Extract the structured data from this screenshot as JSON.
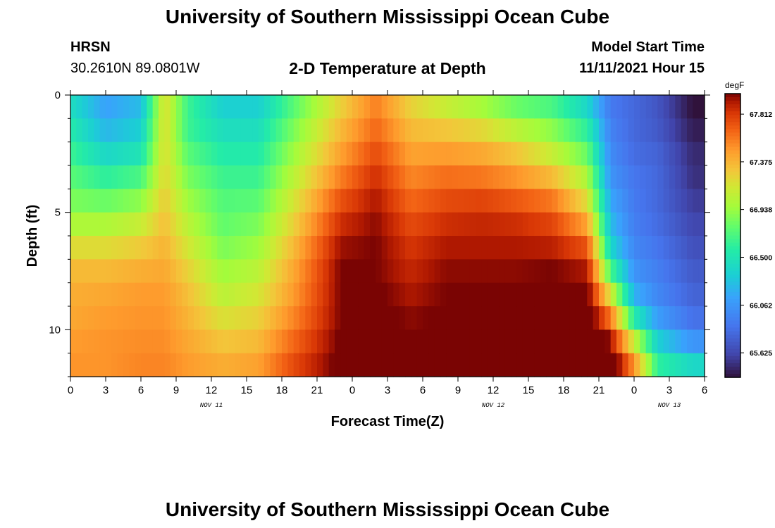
{
  "header": {
    "title": "University of Southern Mississippi Ocean Cube",
    "station_name": "HRSN",
    "coordinates": "30.2610N  89.0801W",
    "plot_title": "2-D Temperature at Depth",
    "model_start_label": "Model Start Time",
    "model_start_value": "11/11/2021 Hour 15"
  },
  "footer": {
    "title": "University of Southern Mississippi Ocean Cube"
  },
  "chart_data": {
    "type": "heatmap",
    "title": "2-D Temperature at Depth",
    "xlabel": "Forecast Time(Z)",
    "ylabel": "Depth (ft)",
    "x_ticks": [
      "0",
      "3",
      "6",
      "9",
      "12",
      "15",
      "18",
      "21",
      "0",
      "3",
      "6",
      "9",
      "12",
      "15",
      "18",
      "21",
      "0",
      "3",
      "6"
    ],
    "date_labels": [
      {
        "hour_index": 12,
        "label": "NOV 11"
      },
      {
        "hour_index": 36,
        "label": "NOV 12"
      },
      {
        "hour_index": 51,
        "label": "NOV 13"
      }
    ],
    "y_ticks": [
      "0",
      "5",
      "10"
    ],
    "xlim_hours": [
      0,
      54
    ],
    "ylim_ft": [
      0,
      12
    ],
    "depth_levels_ft": [
      0,
      1,
      2,
      3,
      4,
      5,
      6,
      7,
      8,
      9,
      10,
      11,
      12
    ],
    "colorbar": {
      "unit": "degF",
      "tick_labels": [
        "67.812",
        "67.375",
        "66.938",
        "66.500",
        "66.062",
        "65.625"
      ],
      "tick_values": [
        67.812,
        67.375,
        66.938,
        66.5,
        66.062,
        65.625
      ],
      "range": [
        65.4,
        68.0
      ]
    },
    "columns": [
      {
        "hour": 0,
        "temps": [
          66.4,
          66.5,
          66.6,
          66.7,
          66.8,
          66.9,
          67.1,
          67.3,
          67.4,
          67.4,
          67.45,
          67.5,
          67.5
        ]
      },
      {
        "hour": 3,
        "temps": [
          66.1,
          66.15,
          66.3,
          66.5,
          66.7,
          66.9,
          67.1,
          67.3,
          67.4,
          67.45,
          67.5,
          67.5,
          67.5
        ]
      },
      {
        "hour": 6,
        "temps": [
          66.2,
          66.3,
          66.4,
          66.6,
          66.8,
          67.0,
          67.2,
          67.35,
          67.45,
          67.5,
          67.5,
          67.55,
          67.55
        ]
      },
      {
        "hour": 8,
        "temps": [
          67.2,
          67.2,
          67.2,
          67.2,
          67.25,
          67.3,
          67.35,
          67.4,
          67.45,
          67.5,
          67.5,
          67.55,
          67.55
        ]
      },
      {
        "hour": 10,
        "temps": [
          66.7,
          66.6,
          66.7,
          66.8,
          66.9,
          67.0,
          67.1,
          67.2,
          67.3,
          67.35,
          67.4,
          67.45,
          67.5
        ]
      },
      {
        "hour": 13,
        "temps": [
          66.3,
          66.4,
          66.5,
          66.6,
          66.7,
          66.75,
          66.8,
          66.9,
          67.0,
          67.1,
          67.25,
          67.35,
          67.45
        ]
      },
      {
        "hour": 16,
        "temps": [
          66.3,
          66.4,
          66.5,
          66.6,
          66.7,
          66.8,
          66.9,
          67.0,
          67.1,
          67.2,
          67.3,
          67.4,
          67.5
        ]
      },
      {
        "hour": 19,
        "temps": [
          66.7,
          66.8,
          66.9,
          67.0,
          67.1,
          67.2,
          67.3,
          67.4,
          67.45,
          67.5,
          67.6,
          67.7,
          67.8
        ]
      },
      {
        "hour": 23,
        "temps": [
          67.2,
          67.3,
          67.4,
          67.5,
          67.65,
          67.8,
          67.9,
          68.0,
          68.0,
          68.0,
          68.0,
          68.05,
          68.05
        ]
      },
      {
        "hour": 26,
        "temps": [
          67.55,
          67.6,
          67.7,
          67.8,
          67.9,
          67.95,
          68.0,
          68.0,
          68.0,
          68.05,
          68.05,
          68.1,
          68.1
        ]
      },
      {
        "hour": 29,
        "temps": [
          67.2,
          67.3,
          67.4,
          67.5,
          67.6,
          67.7,
          67.8,
          67.85,
          67.9,
          67.95,
          68.0,
          68.05,
          68.1
        ]
      },
      {
        "hour": 32,
        "temps": [
          67.0,
          67.2,
          67.4,
          67.55,
          67.7,
          67.8,
          67.9,
          67.95,
          68.0,
          68.0,
          68.05,
          68.05,
          68.1
        ]
      },
      {
        "hour": 35,
        "temps": [
          66.85,
          67.1,
          67.35,
          67.5,
          67.7,
          67.85,
          67.9,
          67.95,
          68.0,
          68.0,
          68.05,
          68.1,
          68.1
        ]
      },
      {
        "hour": 38,
        "temps": [
          66.7,
          66.9,
          67.2,
          67.4,
          67.6,
          67.8,
          67.9,
          67.95,
          68.0,
          68.05,
          68.1,
          68.15,
          68.2
        ]
      },
      {
        "hour": 41,
        "temps": [
          66.6,
          66.8,
          67.0,
          67.2,
          67.5,
          67.7,
          67.85,
          67.95,
          68.05,
          68.1,
          68.2,
          68.25,
          68.35
        ]
      },
      {
        "hour": 44,
        "temps": [
          66.3,
          66.5,
          66.7,
          66.9,
          67.1,
          67.3,
          67.6,
          67.85,
          68.0,
          68.1,
          68.2,
          68.3,
          68.4
        ]
      },
      {
        "hour": 46,
        "temps": [
          65.9,
          65.9,
          66.0,
          66.0,
          66.1,
          66.2,
          66.3,
          66.5,
          66.9,
          67.4,
          67.8,
          68.1,
          68.3
        ]
      },
      {
        "hour": 48,
        "temps": [
          65.8,
          65.8,
          65.8,
          65.85,
          65.9,
          65.9,
          65.95,
          66.0,
          66.1,
          66.3,
          66.8,
          67.4,
          67.6
        ]
      },
      {
        "hour": 50,
        "temps": [
          65.7,
          65.7,
          65.75,
          65.8,
          65.8,
          65.8,
          65.85,
          65.9,
          65.95,
          66.0,
          66.2,
          66.5,
          66.7
        ]
      },
      {
        "hour": 53,
        "temps": [
          65.4,
          65.4,
          65.5,
          65.5,
          65.55,
          65.6,
          65.65,
          65.7,
          65.75,
          65.8,
          65.9,
          66.2,
          66.6
        ]
      }
    ]
  }
}
